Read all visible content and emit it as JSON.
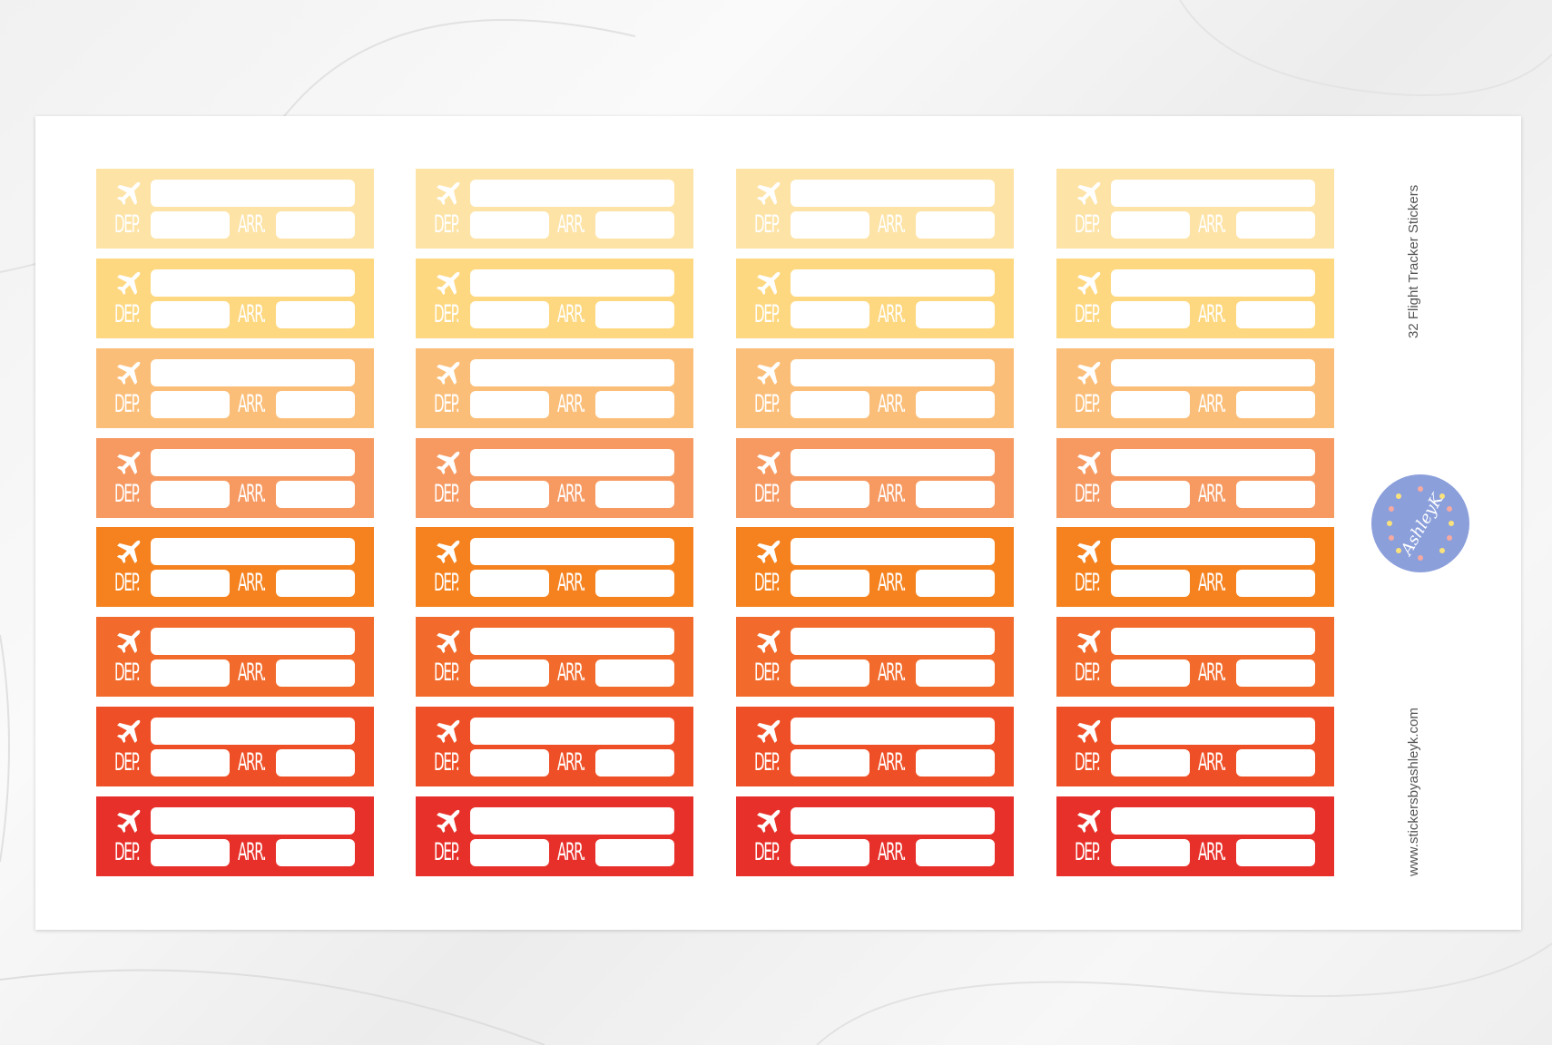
{
  "sheet": {
    "title": "32 Flight Tracker Stickers",
    "website": "www.stickersbyashleyk.com",
    "logo_text": "by AshleyK",
    "logo_color": "#8b9fdb"
  },
  "sticker": {
    "icon": "airplane-icon",
    "dep_label": "DEP.",
    "arr_label": "ARR."
  },
  "columns": 4,
  "rows": [
    {
      "color": "#fde3a6"
    },
    {
      "color": "#fed880"
    },
    {
      "color": "#fbbe78"
    },
    {
      "color": "#f69a62"
    },
    {
      "color": "#f5821f"
    },
    {
      "color": "#f26b2c"
    },
    {
      "color": "#ef4f26"
    },
    {
      "color": "#e8302a"
    }
  ]
}
